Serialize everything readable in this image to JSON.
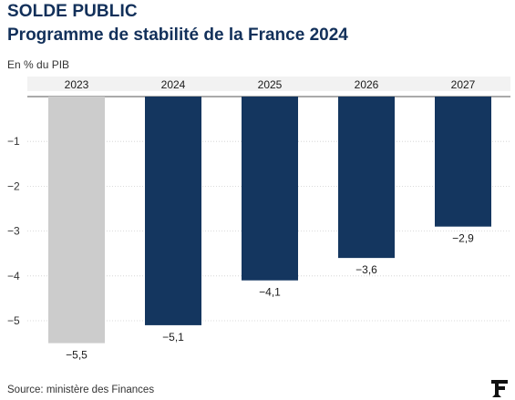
{
  "chart_data": {
    "type": "bar",
    "title": "SOLDE PUBLIC",
    "subtitle": "Programme de stabilité de la France 2024",
    "ylabel": "En % du PIB",
    "categories": [
      "2023",
      "2024",
      "2025",
      "2026",
      "2027"
    ],
    "values": [
      -5.5,
      -5.1,
      -4.1,
      -3.6,
      -2.9
    ],
    "value_labels": [
      "−5,5",
      "−5,1",
      "−4,1",
      "−3,6",
      "−2,9"
    ],
    "y_ticks": [
      0,
      -1,
      -2,
      -3,
      -4,
      -5
    ],
    "y_tick_labels": [
      "",
      "−1",
      "−2",
      "−3",
      "−4",
      "−5"
    ],
    "ylim": [
      -5.5,
      0
    ],
    "grid": true,
    "colors": [
      "#cccccc",
      "#14365f",
      "#14365f",
      "#14365f",
      "#14365f"
    ],
    "source": "Source: ministère des Finances"
  }
}
